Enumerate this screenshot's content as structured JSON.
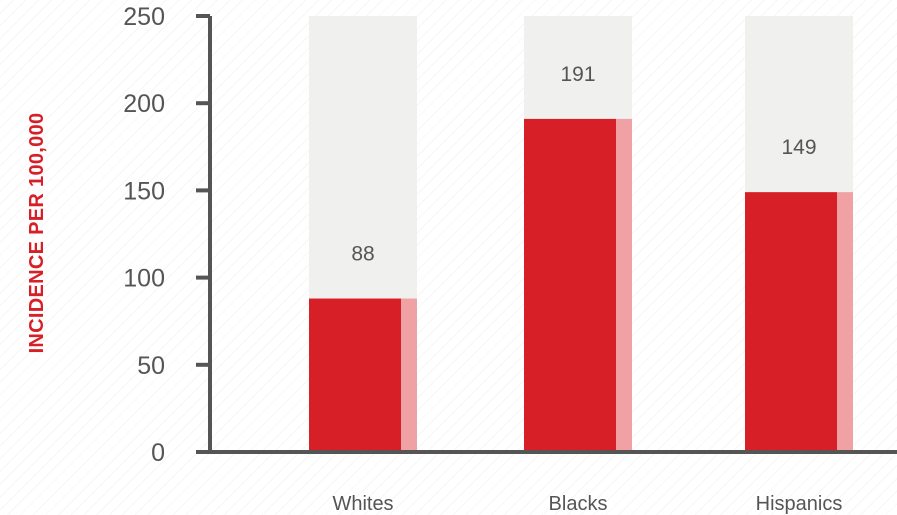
{
  "chart_data": {
    "type": "bar",
    "title": "",
    "xlabel": "",
    "ylabel": "INCIDENCE PER 100,000",
    "ylim": [
      0,
      250
    ],
    "yticks": [
      0,
      50,
      100,
      150,
      200,
      250
    ],
    "categories": [
      "Whites",
      "Blacks",
      "Hispanics"
    ],
    "values": [
      88,
      191,
      149
    ],
    "data_labels": [
      "88",
      "191",
      "149"
    ],
    "grid": false,
    "legend": "none",
    "colors": {
      "bar": "#d71f27",
      "bar_side": "#f0a1a4",
      "bar_track": "#f0f0ef",
      "axis": "#555555",
      "tick_text": "#555555",
      "ylabel": "#d71f27",
      "data_label": "#555555"
    }
  }
}
